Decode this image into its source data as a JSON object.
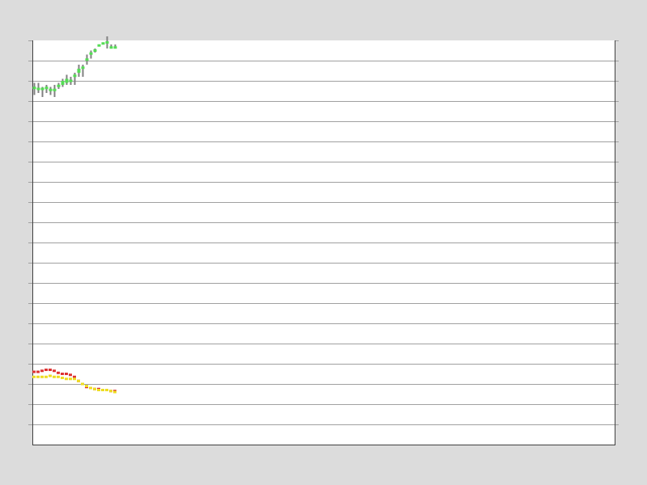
{
  "chart_data": {
    "type": "line",
    "title": "",
    "xlabel": "",
    "ylabel": "",
    "grid": true,
    "legend": "none",
    "x_count": 21,
    "ylim": [
      0,
      20
    ],
    "y_gridlines": 20,
    "colors": {
      "background": "#dcdcdc",
      "plot_bg": "#ffffff",
      "grid": "#a0a0a0",
      "axis": "#404040",
      "wick": "#808080"
    },
    "candles": {
      "name": "",
      "color_up": "#55dd55",
      "color_down": "#55dd55",
      "ohlc": [
        [
          17.7,
          17.9,
          17.3,
          17.6
        ],
        [
          17.6,
          17.9,
          17.4,
          17.6
        ],
        [
          17.6,
          17.7,
          17.2,
          17.6
        ],
        [
          17.6,
          17.8,
          17.4,
          17.7
        ],
        [
          17.6,
          17.7,
          17.3,
          17.5
        ],
        [
          17.6,
          17.8,
          17.2,
          17.5
        ],
        [
          17.7,
          17.9,
          17.6,
          17.8
        ],
        [
          17.8,
          18.1,
          17.7,
          18.0
        ],
        [
          17.9,
          18.3,
          17.8,
          18.1
        ],
        [
          18.0,
          18.2,
          17.8,
          18.0
        ],
        [
          18.2,
          18.4,
          17.8,
          18.3
        ],
        [
          18.4,
          18.8,
          18.2,
          18.6
        ],
        [
          18.6,
          18.8,
          18.2,
          18.7
        ],
        [
          19.0,
          19.3,
          18.8,
          19.1
        ],
        [
          19.3,
          19.5,
          19.1,
          19.4
        ],
        [
          19.5,
          19.6,
          19.4,
          19.5
        ],
        [
          19.7,
          19.8,
          19.7,
          19.8
        ],
        [
          19.8,
          19.8,
          19.8,
          19.9
        ],
        [
          19.9,
          20.2,
          19.6,
          19.9
        ],
        [
          19.6,
          19.8,
          19.6,
          19.7
        ],
        [
          19.6,
          19.8,
          19.6,
          19.7
        ]
      ]
    },
    "series": [
      {
        "name": "",
        "color": "#dd3333",
        "values": [
          3.6,
          3.6,
          3.65,
          3.7,
          3.7,
          3.65,
          3.55,
          3.5,
          3.5,
          3.45,
          3.35,
          3.15,
          3.0,
          2.85,
          2.8,
          2.75,
          2.75,
          2.7,
          2.7,
          2.65,
          2.65
        ]
      },
      {
        "name": "",
        "color": "#eedd22",
        "values": [
          3.35,
          3.35,
          3.35,
          3.35,
          3.4,
          3.35,
          3.35,
          3.3,
          3.25,
          3.25,
          3.25,
          3.15,
          3.0,
          2.9,
          2.8,
          2.75,
          2.7,
          2.7,
          2.7,
          2.65,
          2.6
        ]
      }
    ]
  }
}
